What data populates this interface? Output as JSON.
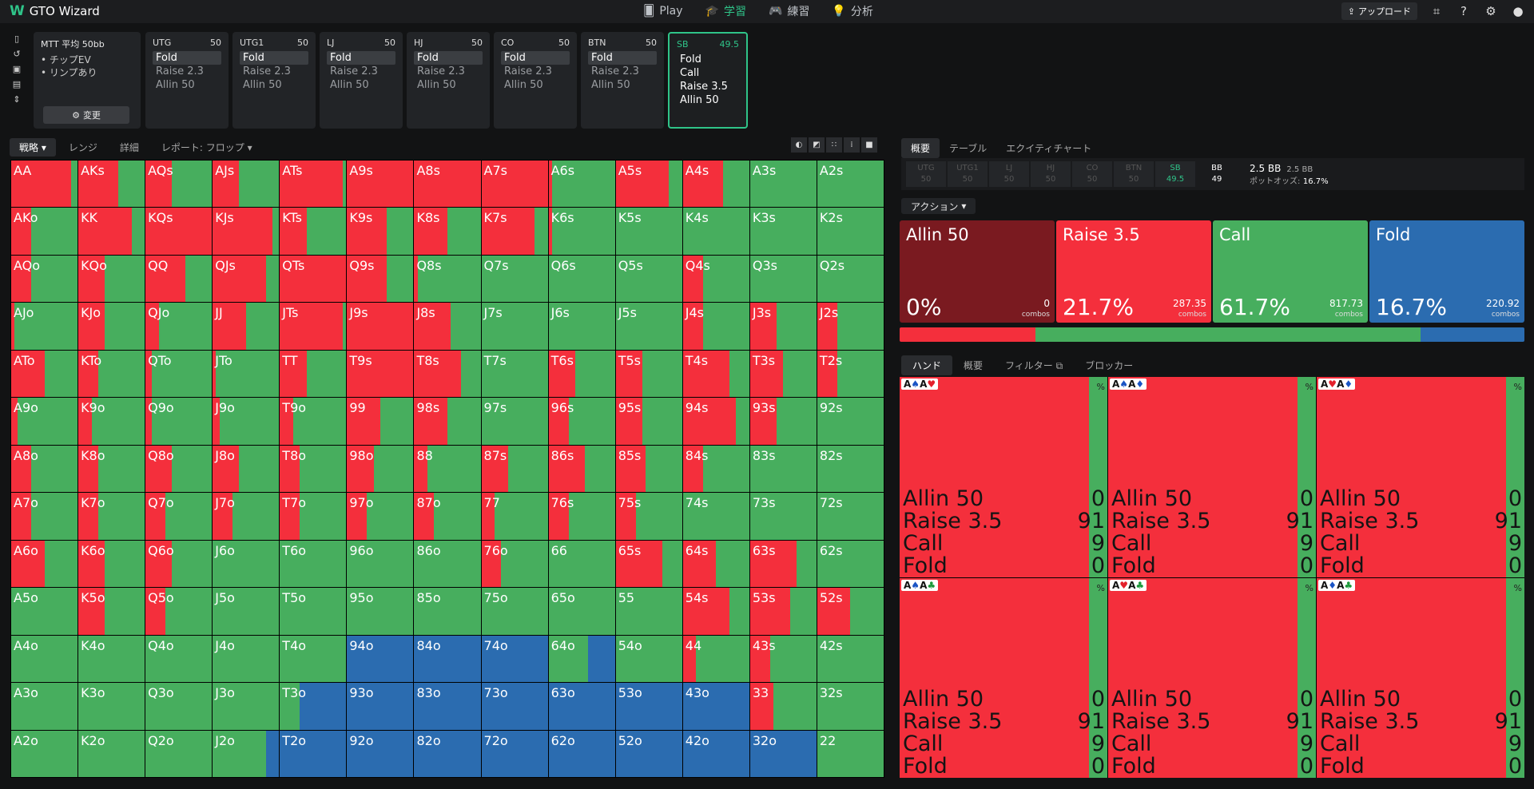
{
  "app": {
    "title": "GTO Wizard"
  },
  "nav": {
    "items": [
      {
        "label": "Play",
        "icon": "cards-icon"
      },
      {
        "label": "学習",
        "icon": "graduation-cap-icon"
      },
      {
        "label": "練習",
        "icon": "gamepad-icon"
      },
      {
        "label": "分析",
        "icon": "lightbulb-icon"
      }
    ]
  },
  "header": {
    "upload_label": "アップロード"
  },
  "game": {
    "title": "MTT 平均 50bb",
    "bullets": [
      "チップEV",
      "リンプあり"
    ],
    "change_label": "変更"
  },
  "positions": [
    {
      "name": "UTG",
      "stack": "50",
      "options": [
        "Fold",
        "Raise 2.3",
        "Allin 50"
      ],
      "selected": "Fold"
    },
    {
      "name": "UTG1",
      "stack": "50",
      "options": [
        "Fold",
        "Raise 2.3",
        "Allin 50"
      ],
      "selected": "Fold"
    },
    {
      "name": "LJ",
      "stack": "50",
      "options": [
        "Fold",
        "Raise 2.3",
        "Allin 50"
      ],
      "selected": "Fold"
    },
    {
      "name": "HJ",
      "stack": "50",
      "options": [
        "Fold",
        "Raise 2.3",
        "Allin 50"
      ],
      "selected": "Fold"
    },
    {
      "name": "CO",
      "stack": "50",
      "options": [
        "Fold",
        "Raise 2.3",
        "Allin 50"
      ],
      "selected": "Fold"
    },
    {
      "name": "BTN",
      "stack": "50",
      "options": [
        "Fold",
        "Raise 2.3",
        "Allin 50"
      ],
      "selected": "Fold"
    },
    {
      "name": "SB",
      "stack": "49.5",
      "options": [
        "Fold",
        "Call",
        "Raise 3.5",
        "Allin 50"
      ],
      "selected": ""
    }
  ],
  "left_tabs": [
    "戦略",
    "レンジ",
    "詳細",
    "レポート: フロップ"
  ],
  "right_tabs": [
    "概要",
    "テーブル",
    "エクイティチャート"
  ],
  "seats": [
    {
      "name": "UTG",
      "stack": "50"
    },
    {
      "name": "UTG1",
      "stack": "50"
    },
    {
      "name": "LJ",
      "stack": "50"
    },
    {
      "name": "HJ",
      "stack": "50"
    },
    {
      "name": "CO",
      "stack": "50"
    },
    {
      "name": "BTN",
      "stack": "50"
    },
    {
      "name": "SB",
      "stack": "49.5"
    },
    {
      "name": "BB",
      "stack": "49"
    }
  ],
  "pot": {
    "pot": "2.5 BB",
    "pot2": "2.5 BB",
    "odds_label": "ポットオッズ:",
    "odds_value": "16.7%"
  },
  "action_dropdown": "アクション",
  "actions": [
    {
      "name": "Allin 50",
      "pct": "0%",
      "combos": "0",
      "combos_label": "combos",
      "color": "#7a1a20"
    },
    {
      "name": "Raise 3.5",
      "pct": "21.7%",
      "combos": "287.35",
      "combos_label": "combos",
      "color": "#f42f3c"
    },
    {
      "name": "Call",
      "pct": "61.7%",
      "combos": "817.73",
      "combos_label": "combos",
      "color": "#47ae5e"
    },
    {
      "name": "Fold",
      "pct": "16.7%",
      "combos": "220.92",
      "combos_label": "combos",
      "color": "#2b6cb0"
    }
  ],
  "bottom_tabs": [
    "ハンド",
    "概要",
    "フィルター",
    "ブロッカー"
  ],
  "combos": [
    {
      "cards": [
        [
          "A",
          "♠",
          "b"
        ],
        [
          "A",
          "♥",
          "r"
        ]
      ]
    },
    {
      "cards": [
        [
          "A",
          "♠",
          "b"
        ],
        [
          "A",
          "♦",
          "b"
        ]
      ]
    },
    {
      "cards": [
        [
          "A",
          "♥",
          "r"
        ],
        [
          "A",
          "♦",
          "b"
        ]
      ]
    },
    {
      "cards": [
        [
          "A",
          "♠",
          "b"
        ],
        [
          "A",
          "♣",
          "g"
        ]
      ]
    },
    {
      "cards": [
        [
          "A",
          "♥",
          "r"
        ],
        [
          "A",
          "♣",
          "g"
        ]
      ]
    },
    {
      "cards": [
        [
          "A",
          "♦",
          "b"
        ],
        [
          "A",
          "♣",
          "g"
        ]
      ]
    }
  ],
  "combo_rows": [
    [
      "Allin 50",
      "0"
    ],
    [
      "Raise 3.5",
      "91"
    ],
    [
      "Call",
      "9"
    ],
    [
      "Fold",
      "0"
    ]
  ],
  "combo_pct_label": "%",
  "hands": [
    [
      "AA",
      "AKs",
      "AQs",
      "AJs",
      "ATs",
      "A9s",
      "A8s",
      "A7s",
      "A6s",
      "A5s",
      "A4s",
      "A3s",
      "A2s"
    ],
    [
      "AKo",
      "KK",
      "KQs",
      "KJs",
      "KTs",
      "K9s",
      "K8s",
      "K7s",
      "K6s",
      "K5s",
      "K4s",
      "K3s",
      "K2s"
    ],
    [
      "AQo",
      "KQo",
      "QQ",
      "QJs",
      "QTs",
      "Q9s",
      "Q8s",
      "Q7s",
      "Q6s",
      "Q5s",
      "Q4s",
      "Q3s",
      "Q2s"
    ],
    [
      "AJo",
      "KJo",
      "QJo",
      "JJ",
      "JTs",
      "J9s",
      "J8s",
      "J7s",
      "J6s",
      "J5s",
      "J4s",
      "J3s",
      "J2s"
    ],
    [
      "ATo",
      "KTo",
      "QTo",
      "JTo",
      "TT",
      "T9s",
      "T8s",
      "T7s",
      "T6s",
      "T5s",
      "T4s",
      "T3s",
      "T2s"
    ],
    [
      "A9o",
      "K9o",
      "Q9o",
      "J9o",
      "T9o",
      "99",
      "98s",
      "97s",
      "96s",
      "95s",
      "94s",
      "93s",
      "92s"
    ],
    [
      "A8o",
      "K8o",
      "Q8o",
      "J8o",
      "T8o",
      "98o",
      "88",
      "87s",
      "86s",
      "85s",
      "84s",
      "83s",
      "82s"
    ],
    [
      "A7o",
      "K7o",
      "Q7o",
      "J7o",
      "T7o",
      "97o",
      "87o",
      "77",
      "76s",
      "75s",
      "74s",
      "73s",
      "72s"
    ],
    [
      "A6o",
      "K6o",
      "Q6o",
      "J6o",
      "T6o",
      "96o",
      "86o",
      "76o",
      "66",
      "65s",
      "64s",
      "63s",
      "62s"
    ],
    [
      "A5o",
      "K5o",
      "Q5o",
      "J5o",
      "T5o",
      "95o",
      "85o",
      "75o",
      "65o",
      "55",
      "54s",
      "53s",
      "52s"
    ],
    [
      "A4o",
      "K4o",
      "Q4o",
      "J4o",
      "T4o",
      "94o",
      "84o",
      "74o",
      "64o",
      "54o",
      "44",
      "43s",
      "42s"
    ],
    [
      "A3o",
      "K3o",
      "Q3o",
      "J3o",
      "T3o",
      "93o",
      "83o",
      "73o",
      "63o",
      "53o",
      "43o",
      "33",
      "32s"
    ],
    [
      "A2o",
      "K2o",
      "Q2o",
      "J2o",
      "T2o",
      "92o",
      "82o",
      "72o",
      "62o",
      "52o",
      "42o",
      "32o",
      "22"
    ]
  ],
  "raise_freq": [
    [
      0.9,
      0.6,
      0.4,
      0.4,
      0.95,
      1,
      1,
      1,
      0.05,
      0.8,
      0.6,
      0,
      0
    ],
    [
      0.3,
      0.8,
      1,
      0.9,
      0.4,
      0.6,
      0.5,
      0.8,
      0.05,
      0,
      0,
      0,
      0
    ],
    [
      0.3,
      0.4,
      0.6,
      0.8,
      1,
      0.6,
      0.05,
      0,
      0,
      0,
      0.3,
      0,
      0
    ],
    [
      0.05,
      0.4,
      0.2,
      0.5,
      0.95,
      1,
      0.55,
      0,
      0,
      0,
      0.3,
      0.4,
      0.3
    ],
    [
      0.5,
      0.3,
      0.1,
      0.05,
      0.4,
      1,
      0.7,
      0,
      0.4,
      0.4,
      0.7,
      0.5,
      0.3
    ],
    [
      0.1,
      0.2,
      0.1,
      0.1,
      0.2,
      0.5,
      0.5,
      0,
      0.3,
      0.4,
      0.8,
      0.4,
      0
    ],
    [
      0.3,
      0.3,
      0.4,
      0.4,
      0.3,
      0.4,
      0.2,
      0.4,
      0.55,
      0.45,
      0.3,
      0,
      0
    ],
    [
      0.3,
      0.3,
      0.3,
      0.3,
      0.3,
      0.3,
      0.3,
      0.2,
      0.3,
      0.3,
      0,
      0,
      0
    ],
    [
      0.5,
      0.4,
      0.4,
      0,
      0,
      0,
      0,
      0.3,
      0,
      0.7,
      0.5,
      0.7,
      0
    ],
    [
      0,
      0.4,
      0.3,
      0,
      0,
      0,
      0,
      0,
      0,
      0,
      0.7,
      0.6,
      0.5
    ],
    [
      0,
      0,
      0,
      0,
      0,
      0,
      0,
      0,
      0,
      0,
      0.2,
      0.3,
      0
    ],
    [
      0,
      0,
      0,
      0,
      0,
      0,
      0,
      0,
      0,
      0,
      0,
      0.35,
      0
    ],
    [
      0,
      0,
      0,
      0,
      0,
      0,
      0,
      0,
      0,
      0,
      0,
      0,
      0
    ]
  ],
  "fold_freq": [
    [
      0,
      0,
      0,
      0,
      0,
      0,
      0,
      0,
      0,
      0,
      0,
      0,
      0
    ],
    [
      0,
      0,
      0,
      0,
      0,
      0,
      0,
      0,
      0,
      0,
      0,
      0,
      0
    ],
    [
      0,
      0,
      0,
      0,
      0,
      0,
      0,
      0,
      0,
      0,
      0,
      0,
      0
    ],
    [
      0,
      0,
      0,
      0,
      0,
      0,
      0,
      0,
      0,
      0,
      0,
      0,
      0
    ],
    [
      0,
      0,
      0,
      0,
      0,
      0,
      0,
      0,
      0,
      0,
      0,
      0,
      0
    ],
    [
      0,
      0,
      0,
      0,
      0,
      0,
      0,
      0,
      0,
      0,
      0,
      0,
      0
    ],
    [
      0,
      0,
      0,
      0,
      0,
      0,
      0,
      0,
      0,
      0,
      0,
      0,
      0
    ],
    [
      0,
      0,
      0,
      0,
      0,
      0,
      0,
      0,
      0,
      0,
      0,
      0,
      0
    ],
    [
      0,
      0,
      0,
      0,
      0,
      0,
      0,
      0,
      0,
      0,
      0,
      0,
      0
    ],
    [
      0,
      0,
      0,
      0,
      0,
      0,
      0,
      0,
      0,
      0,
      0,
      0,
      0
    ],
    [
      0,
      0,
      0,
      0,
      0,
      1,
      1,
      1,
      0.4,
      0,
      0,
      0,
      0
    ],
    [
      0,
      0,
      0,
      0,
      0.7,
      1,
      1,
      1,
      1,
      1,
      1,
      0,
      0
    ],
    [
      0,
      0,
      0,
      0.2,
      1,
      1,
      1,
      1,
      1,
      1,
      1,
      1,
      0
    ]
  ],
  "colors": {
    "raise": "#f42f3c",
    "call": "#47ae5e",
    "fold": "#2b6cb0",
    "allin": "#7a1a20",
    "accent": "#2fc489"
  }
}
